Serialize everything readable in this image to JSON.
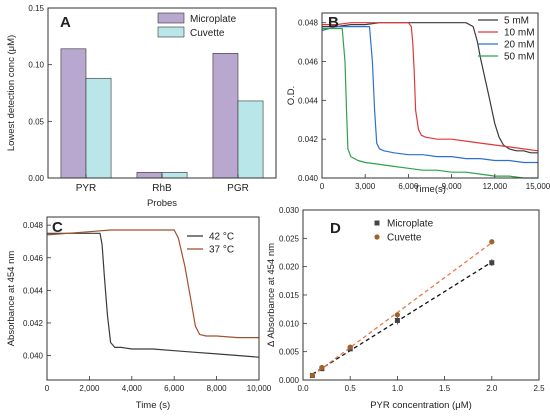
{
  "figure": {
    "panels": [
      "A",
      "B",
      "C",
      "D"
    ]
  },
  "chart_data": [
    {
      "panel": "A",
      "type": "bar",
      "xlabel": "Probes",
      "ylabel": "Lowest detection conc (μM)",
      "categories": [
        "PYR",
        "RhB",
        "PGR"
      ],
      "series": [
        {
          "name": "Microplate",
          "color": "#b8a7cf",
          "values": [
            0.114,
            0.005,
            0.11
          ]
        },
        {
          "name": "Cuvette",
          "color": "#b9e6e8",
          "values": [
            0.088,
            0.005,
            0.068
          ]
        }
      ],
      "ylim": [
        0,
        0.15
      ],
      "yticks": [
        0.0,
        0.05,
        0.1,
        0.15
      ],
      "ytick_labels": [
        "0.00",
        "0.05",
        "0.10",
        "0.15"
      ],
      "legend_position": "top-right",
      "grid": false
    },
    {
      "panel": "B",
      "type": "line",
      "xlabel": "Time(s)",
      "ylabel": "O.D.",
      "xlim": [
        0,
        15000
      ],
      "ylim": [
        0.04,
        0.0485
      ],
      "xticks": [
        0,
        3000,
        6000,
        9000,
        12000,
        15000
      ],
      "xtick_labels": [
        "0",
        "3,000",
        "6,000",
        "9,000",
        "12,000",
        "15,000"
      ],
      "yticks": [
        0.04,
        0.042,
        0.044,
        0.046,
        0.048
      ],
      "ytick_labels": [
        "0.040",
        "0.042",
        "0.044",
        "0.046",
        "0.048"
      ],
      "legend_position": "top-right",
      "grid": false,
      "series": [
        {
          "name": "5 mM",
          "color": "#3a3a3a",
          "x": [
            0,
            1000,
            2000,
            3000,
            4000,
            5000,
            6000,
            7000,
            8000,
            9000,
            10000,
            10500,
            10800,
            11000,
            11300,
            11600,
            12000,
            12300,
            12600,
            13000,
            13500,
            14000,
            14500,
            15000
          ],
          "y": [
            0.0478,
            0.0478,
            0.0479,
            0.0479,
            0.048,
            0.048,
            0.048,
            0.048,
            0.048,
            0.048,
            0.048,
            0.0478,
            0.047,
            0.0462,
            0.0452,
            0.0442,
            0.0428,
            0.0421,
            0.0417,
            0.0415,
            0.0414,
            0.0414,
            0.0413,
            0.0413
          ]
        },
        {
          "name": "10 mM",
          "color": "#e0383a",
          "x": [
            0,
            1000,
            2000,
            3000,
            4000,
            5000,
            6000,
            6200,
            6300,
            6400,
            6500,
            6700,
            6900,
            7200,
            8000,
            9000,
            10000,
            11000,
            12000,
            13000,
            14000,
            15000
          ],
          "y": [
            0.0479,
            0.0479,
            0.048,
            0.048,
            0.048,
            0.048,
            0.048,
            0.0478,
            0.047,
            0.0455,
            0.0435,
            0.0425,
            0.0422,
            0.0421,
            0.042,
            0.042,
            0.0419,
            0.0418,
            0.0417,
            0.0416,
            0.0415,
            0.0414
          ]
        },
        {
          "name": "20 mM",
          "color": "#2f6fd1",
          "x": [
            0,
            500,
            1000,
            2000,
            3000,
            3300,
            3500,
            3650,
            3800,
            4000,
            4300,
            5000,
            6000,
            7000,
            8000,
            9000,
            10000,
            11000,
            12000,
            13000,
            14000,
            15000
          ],
          "y": [
            0.0476,
            0.0477,
            0.0478,
            0.0478,
            0.0478,
            0.0478,
            0.046,
            0.0435,
            0.0418,
            0.0415,
            0.0414,
            0.0413,
            0.0412,
            0.0412,
            0.0411,
            0.0411,
            0.041,
            0.041,
            0.0409,
            0.0409,
            0.0408,
            0.0408
          ]
        },
        {
          "name": "50 mM",
          "color": "#2ea24a",
          "x": [
            0,
            500,
            1000,
            1400,
            1600,
            1700,
            1800,
            2000,
            2500,
            3000,
            4000,
            5000,
            6000,
            7000,
            8000,
            9000,
            10000,
            11000,
            12000,
            13000,
            14000,
            15000
          ],
          "y": [
            0.0477,
            0.0477,
            0.0477,
            0.0477,
            0.046,
            0.0435,
            0.0415,
            0.0411,
            0.0409,
            0.0408,
            0.0407,
            0.0406,
            0.0405,
            0.0404,
            0.0404,
            0.0403,
            0.0403,
            0.0402,
            0.0401,
            0.0401,
            0.04,
            0.04
          ]
        }
      ]
    },
    {
      "panel": "C",
      "type": "line",
      "xlabel": "Time (s)",
      "ylabel": "Absorbance at 454 nm",
      "xlim": [
        0,
        10000
      ],
      "ylim": [
        0.0385,
        0.0485
      ],
      "xticks": [
        0,
        2000,
        4000,
        6000,
        8000,
        10000
      ],
      "xtick_labels": [
        "0",
        "2,000",
        "4,000",
        "6,000",
        "8,000",
        "10,000"
      ],
      "yticks": [
        0.04,
        0.042,
        0.044,
        0.046,
        0.048
      ],
      "ytick_labels": [
        "0.040",
        "0.042",
        "0.044",
        "0.046",
        "0.048"
      ],
      "legend_position": "top-right",
      "grid": false,
      "series": [
        {
          "name": "42 °C",
          "color": "#3a3a3a",
          "x": [
            0,
            500,
            1000,
            1500,
            2000,
            2500,
            2600,
            2700,
            2850,
            3000,
            3200,
            3500,
            4000,
            5000,
            6000,
            7000,
            8000,
            9000,
            10000
          ],
          "y": [
            0.0475,
            0.0475,
            0.0475,
            0.0475,
            0.0475,
            0.0475,
            0.0468,
            0.045,
            0.0425,
            0.0408,
            0.0405,
            0.0405,
            0.0404,
            0.0404,
            0.0403,
            0.0402,
            0.0401,
            0.04,
            0.0399
          ]
        },
        {
          "name": "37 °C",
          "color": "#a0522d",
          "x": [
            0,
            1000,
            2000,
            3000,
            4000,
            5000,
            6000,
            6200,
            6500,
            6800,
            7000,
            7200,
            7500,
            8000,
            9000,
            10000
          ],
          "y": [
            0.0474,
            0.0475,
            0.0476,
            0.0477,
            0.0477,
            0.0477,
            0.0477,
            0.0472,
            0.0455,
            0.0433,
            0.0418,
            0.0413,
            0.0412,
            0.0412,
            0.0411,
            0.0411
          ]
        }
      ]
    },
    {
      "panel": "D",
      "type": "scatter",
      "xlabel": "PYR concentration (μM)",
      "ylabel": "Δ Absorbance at 454 nm",
      "xlim": [
        0,
        2.5
      ],
      "ylim": [
        0,
        0.03
      ],
      "xticks": [
        0.0,
        0.5,
        1.0,
        1.5,
        2.0,
        2.5
      ],
      "xtick_labels": [
        "0.0",
        "0.5",
        "1.0",
        "1.5",
        "2.0",
        "2.5"
      ],
      "yticks": [
        0.0,
        0.005,
        0.01,
        0.015,
        0.02,
        0.025,
        0.03
      ],
      "ytick_labels": [
        "0.000",
        "0.005",
        "0.010",
        "0.015",
        "0.020",
        "0.025",
        "0.030"
      ],
      "legend_position": "top-left",
      "grid": false,
      "series": [
        {
          "name": "Microplate",
          "color": "#444444",
          "marker": "square",
          "x": [
            0.1,
            0.2,
            0.5,
            1.0,
            2.0
          ],
          "y": [
            0.0008,
            0.002,
            0.0055,
            0.0105,
            0.0207
          ],
          "err": [
            0.0002,
            0.0003,
            0.0004,
            0.0007,
            0.0006
          ],
          "fit_color": "#111111"
        },
        {
          "name": "Cuvette",
          "color": "#a0622d",
          "marker": "circle",
          "x": [
            0.1,
            0.2,
            0.5,
            1.0,
            2.0
          ],
          "y": [
            0.0008,
            0.0022,
            0.0058,
            0.0115,
            0.0244
          ],
          "err": [
            0.0001,
            0.0002,
            0.0003,
            0.0004,
            0.0003
          ],
          "fit_color": "#e8774a"
        }
      ]
    }
  ]
}
